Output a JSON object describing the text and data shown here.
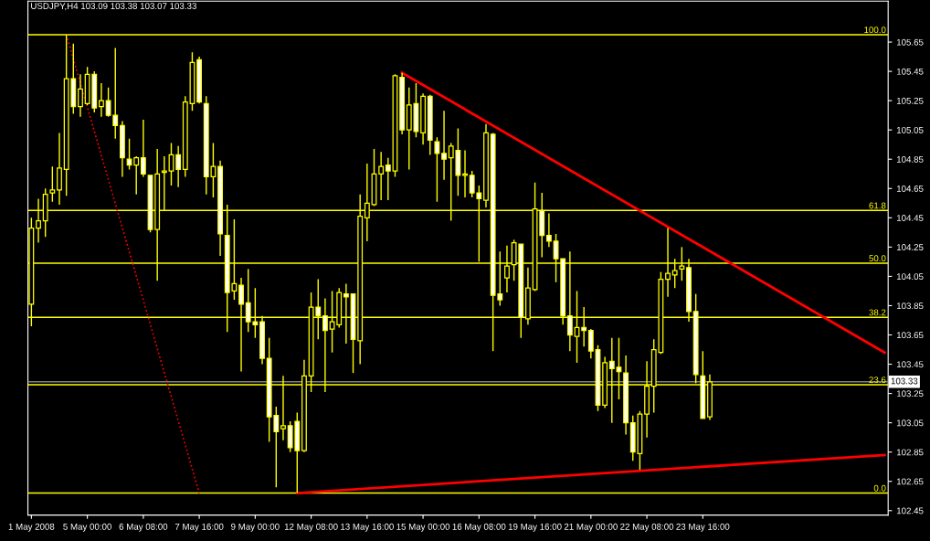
{
  "chart_data": {
    "type": "candlestick",
    "title": "USDJPY,H4 103.09 103.38 103.07 103.33",
    "categories": [
      "1 May 2008",
      null,
      null,
      null,
      null,
      null,
      null,
      null,
      "5 May 00:00",
      null,
      null,
      null,
      null,
      null,
      null,
      null,
      "6 May 08:00",
      null,
      null,
      null,
      null,
      null,
      null,
      null,
      "7 May 16:00",
      null,
      null,
      null,
      null,
      null,
      null,
      null,
      "9 May 00:00",
      null,
      null,
      null,
      null,
      null,
      null,
      null,
      "12 May 08:00",
      null,
      null,
      null,
      null,
      null,
      null,
      null,
      "13 May 16:00",
      null,
      null,
      null,
      null,
      null,
      null,
      null,
      "15 May 00:00",
      null,
      null,
      null,
      null,
      null,
      null,
      null,
      "16 May 08:00",
      null,
      null,
      null,
      null,
      null,
      null,
      null,
      "19 May 16:00",
      null,
      null,
      null,
      null,
      null,
      null,
      null,
      "21 May 00:00",
      null,
      null,
      null,
      null,
      null,
      null,
      null,
      "22 May 08:00",
      null,
      null,
      null,
      null,
      null,
      null,
      null,
      "23 May 16:00",
      null,
      null,
      null,
      null,
      null,
      null,
      null,
      null,
      null,
      null,
      null,
      null,
      null,
      null,
      null,
      null,
      null,
      null,
      null,
      null,
      null,
      null,
      null,
      null,
      null,
      null
    ],
    "ohlc": [
      [
        103.86,
        104.45,
        103.71,
        104.38
      ],
      [
        104.38,
        104.58,
        104.28,
        104.43
      ],
      [
        104.43,
        104.65,
        104.32,
        104.61
      ],
      [
        104.62,
        104.8,
        104.56,
        104.64
      ],
      [
        104.64,
        105.03,
        104.54,
        104.79
      ],
      [
        104.78,
        105.7,
        104.6,
        105.4
      ],
      [
        105.4,
        105.64,
        105.16,
        105.21
      ],
      [
        105.21,
        105.43,
        105.14,
        105.33
      ],
      [
        105.23,
        105.48,
        105.22,
        105.43
      ],
      [
        105.43,
        105.45,
        105.17,
        105.2
      ],
      [
        105.21,
        105.37,
        105.14,
        105.25
      ],
      [
        105.25,
        105.34,
        105.14,
        105.15
      ],
      [
        105.15,
        105.61,
        104.99,
        105.08
      ],
      [
        105.08,
        105.11,
        104.73,
        104.86
      ],
      [
        104.85,
        104.99,
        104.78,
        104.81
      ],
      [
        104.81,
        104.87,
        104.61,
        104.86
      ],
      [
        104.86,
        105.12,
        104.73,
        104.75
      ],
      [
        104.74,
        104.74,
        104.35,
        104.37
      ],
      [
        104.37,
        104.92,
        104.02,
        104.75
      ],
      [
        104.76,
        104.87,
        104.5,
        104.77
      ],
      [
        104.77,
        104.96,
        104.67,
        104.88
      ],
      [
        104.88,
        104.94,
        104.66,
        104.78
      ],
      [
        104.78,
        105.28,
        104.73,
        105.24
      ],
      [
        105.23,
        105.58,
        105.18,
        105.51
      ],
      [
        105.53,
        105.55,
        105.23,
        105.24
      ],
      [
        105.23,
        105.28,
        104.61,
        104.73
      ],
      [
        104.73,
        104.96,
        104.59,
        104.8
      ],
      [
        104.8,
        104.84,
        104.19,
        104.34
      ],
      [
        104.33,
        104.54,
        103.67,
        103.94
      ],
      [
        103.95,
        104.44,
        103.89,
        104.0
      ],
      [
        103.99,
        104.04,
        103.4,
        103.86
      ],
      [
        103.87,
        104.1,
        103.67,
        103.74
      ],
      [
        103.74,
        103.97,
        103.63,
        103.72
      ],
      [
        103.74,
        103.78,
        103.45,
        103.49
      ],
      [
        103.49,
        103.63,
        102.92,
        103.09
      ],
      [
        103.1,
        103.16,
        102.61,
        102.99
      ],
      [
        103.01,
        103.37,
        102.93,
        103.03
      ],
      [
        103.03,
        103.06,
        102.85,
        102.88
      ],
      [
        103.06,
        103.12,
        102.57,
        102.86
      ],
      [
        102.86,
        103.48,
        102.85,
        103.37
      ],
      [
        103.37,
        103.94,
        103.26,
        103.84
      ],
      [
        103.84,
        104.03,
        103.62,
        103.78
      ],
      [
        103.78,
        103.9,
        103.26,
        103.68
      ],
      [
        103.69,
        103.95,
        103.53,
        103.74
      ],
      [
        103.72,
        103.97,
        103.7,
        103.94
      ],
      [
        103.93,
        104.0,
        103.59,
        103.91
      ],
      [
        103.93,
        103.93,
        103.39,
        103.62
      ],
      [
        103.61,
        104.61,
        103.45,
        104.46
      ],
      [
        104.45,
        104.82,
        104.29,
        104.55
      ],
      [
        104.54,
        104.92,
        104.53,
        104.75
      ],
      [
        104.75,
        104.9,
        104.57,
        104.8
      ],
      [
        104.81,
        104.86,
        104.57,
        104.77
      ],
      [
        104.77,
        105.43,
        104.73,
        105.42
      ],
      [
        105.41,
        105.44,
        105.02,
        105.05
      ],
      [
        105.05,
        105.34,
        104.78,
        105.22
      ],
      [
        105.23,
        105.37,
        105.0,
        105.04
      ],
      [
        105.03,
        105.3,
        104.95,
        105.28
      ],
      [
        105.28,
        105.29,
        104.88,
        104.98
      ],
      [
        104.97,
        105.0,
        104.56,
        104.89
      ],
      [
        104.89,
        105.18,
        104.71,
        104.85
      ],
      [
        104.86,
        104.96,
        104.43,
        104.94
      ],
      [
        104.91,
        105.06,
        104.6,
        104.74
      ],
      [
        104.74,
        104.91,
        104.59,
        104.75
      ],
      [
        104.74,
        104.77,
        104.59,
        104.62
      ],
      [
        104.62,
        104.67,
        104.15,
        104.58
      ],
      [
        104.57,
        105.09,
        104.52,
        105.03
      ],
      [
        105.02,
        105.03,
        103.54,
        103.92
      ],
      [
        103.93,
        104.22,
        103.85,
        103.89
      ],
      [
        104.04,
        104.26,
        103.94,
        104.12
      ],
      [
        104.13,
        104.3,
        104.02,
        104.28
      ],
      [
        104.27,
        104.27,
        103.63,
        103.77
      ],
      [
        103.76,
        104.11,
        103.72,
        103.97
      ],
      [
        103.96,
        104.69,
        103.95,
        104.51
      ],
      [
        104.5,
        104.62,
        104.18,
        104.33
      ],
      [
        104.33,
        104.48,
        104.25,
        104.29
      ],
      [
        104.29,
        104.34,
        104.01,
        104.17
      ],
      [
        104.17,
        104.17,
        103.72,
        103.78
      ],
      [
        103.78,
        104.22,
        103.54,
        103.65
      ],
      [
        103.64,
        103.95,
        103.46,
        103.7
      ],
      [
        103.7,
        103.84,
        103.57,
        103.68
      ],
      [
        103.68,
        103.69,
        103.49,
        103.54
      ],
      [
        103.55,
        103.58,
        103.13,
        103.17
      ],
      [
        103.17,
        103.5,
        103.15,
        103.46
      ],
      [
        103.47,
        103.63,
        103.05,
        103.42
      ],
      [
        103.43,
        103.63,
        103.21,
        103.4
      ],
      [
        103.39,
        103.51,
        102.97,
        103.05
      ],
      [
        103.05,
        103.1,
        102.79,
        102.85
      ],
      [
        102.84,
        103.13,
        102.73,
        103.11
      ],
      [
        103.11,
        103.47,
        102.95,
        103.3
      ],
      [
        103.3,
        103.62,
        103.12,
        103.55
      ],
      [
        103.53,
        104.08,
        103.52,
        104.03
      ],
      [
        104.03,
        104.38,
        103.91,
        104.07
      ],
      [
        104.06,
        104.17,
        103.97,
        104.09
      ],
      [
        104.1,
        104.25,
        104.02,
        104.12
      ],
      [
        104.11,
        104.17,
        103.74,
        103.81
      ],
      [
        103.81,
        103.93,
        103.32,
        103.38
      ],
      [
        103.37,
        103.54,
        103.08,
        103.08
      ],
      [
        103.09,
        103.38,
        103.07,
        103.33
      ],
      null,
      null,
      null,
      null,
      null,
      null,
      null,
      null,
      null,
      null,
      null,
      null,
      null,
      null,
      null,
      null,
      null,
      null,
      null,
      null,
      null,
      null,
      null,
      null,
      null
    ],
    "series": [
      {
        "type": "line",
        "color": "#ff0000",
        "line_style": "solid",
        "values": [
          null,
          null,
          null,
          null,
          null,
          null,
          null,
          null,
          null,
          null,
          null,
          null,
          null,
          null,
          null,
          null,
          null,
          null,
          null,
          null,
          null,
          null,
          null,
          null,
          null,
          null,
          null,
          null,
          null,
          null,
          null,
          null,
          null,
          null,
          null,
          null,
          null,
          null,
          null,
          null,
          null,
          null,
          null,
          null,
          null,
          null,
          null,
          null,
          null,
          null,
          null,
          null,
          null,
          105.44,
          null,
          null,
          null,
          null,
          null,
          null,
          null,
          null,
          null,
          null,
          null,
          null,
          null,
          null,
          null,
          null,
          null,
          null,
          null,
          null,
          null,
          null,
          null,
          null,
          null,
          null,
          null,
          null,
          null,
          null,
          null,
          null,
          null,
          null,
          null,
          null,
          null,
          null,
          null,
          null,
          null,
          null,
          null,
          null,
          null,
          null,
          null,
          null,
          null,
          null,
          null,
          null,
          null,
          null,
          null,
          null,
          null,
          null,
          null,
          null,
          null,
          null,
          null,
          null,
          null,
          null,
          null,
          null,
          103.53
        ]
      },
      {
        "type": "line",
        "color": "#ff0000",
        "line_style": "solid",
        "values": [
          null,
          null,
          null,
          null,
          null,
          null,
          null,
          null,
          null,
          null,
          null,
          null,
          null,
          null,
          null,
          null,
          null,
          null,
          null,
          null,
          null,
          null,
          null,
          null,
          null,
          null,
          null,
          null,
          null,
          null,
          null,
          null,
          null,
          null,
          null,
          null,
          null,
          null,
          102.57,
          null,
          null,
          null,
          null,
          null,
          null,
          null,
          null,
          null,
          null,
          null,
          null,
          null,
          null,
          null,
          null,
          null,
          null,
          null,
          null,
          null,
          null,
          null,
          null,
          null,
          null,
          null,
          null,
          null,
          null,
          null,
          null,
          null,
          null,
          null,
          null,
          null,
          null,
          null,
          null,
          null,
          null,
          null,
          null,
          null,
          null,
          null,
          null,
          null,
          null,
          null,
          null,
          null,
          null,
          null,
          null,
          null,
          null,
          null,
          null,
          null,
          null,
          null,
          null,
          null,
          null,
          null,
          null,
          null,
          null,
          null,
          null,
          null,
          null,
          null,
          null,
          null,
          null,
          null,
          null,
          null,
          null,
          null,
          102.83
        ]
      },
      {
        "type": "line",
        "color": "#ff0000",
        "line_style": "dotted",
        "values": [
          null,
          null,
          null,
          null,
          null,
          105.7,
          null,
          null,
          null,
          null,
          null,
          null,
          null,
          null,
          null,
          null,
          null,
          null,
          null,
          null,
          null,
          null,
          null,
          null,
          102.57,
          null,
          null,
          null,
          null,
          null,
          null,
          null,
          null,
          null,
          null,
          null,
          null,
          null,
          null,
          null,
          null,
          null,
          null,
          null,
          null,
          null,
          null,
          null,
          null,
          null,
          null,
          null,
          null,
          null,
          null,
          null,
          null,
          null,
          null,
          null,
          null,
          null,
          null,
          null,
          null,
          null,
          null,
          null,
          null,
          null,
          null,
          null,
          null,
          null,
          null,
          null,
          null,
          null,
          null,
          null,
          null,
          null,
          null,
          null,
          null,
          null,
          null,
          null,
          null,
          null,
          null,
          null,
          null,
          null,
          null,
          null,
          null,
          null,
          null,
          null,
          null,
          null,
          null,
          null,
          null,
          null,
          null,
          null,
          null,
          null,
          null,
          null,
          null,
          null,
          null,
          null,
          null,
          null,
          null,
          null,
          null,
          null,
          null
        ]
      }
    ],
    "ylim": [
      102.42,
      105.93
    ],
    "yticks": [
      102.45,
      102.65,
      102.85,
      103.05,
      103.25,
      103.45,
      103.65,
      103.85,
      104.05,
      104.25,
      104.45,
      104.65,
      104.85,
      105.05,
      105.25,
      105.45,
      105.65
    ],
    "ref_lines": [
      {
        "axis": "y",
        "value": 105.7,
        "color": "#ffff00"
      },
      {
        "axis": "y",
        "value": 104.5,
        "color": "#ffff00"
      },
      {
        "axis": "y",
        "value": 104.14,
        "color": "#ffff00"
      },
      {
        "axis": "y",
        "value": 103.77,
        "color": "#ffff00"
      },
      {
        "axis": "y",
        "value": 103.31,
        "color": "#ffff00"
      },
      {
        "axis": "y",
        "value": 102.57,
        "color": "#ffff00"
      },
      {
        "axis": "y",
        "value": 103.33,
        "label": "103.33",
        "color": "#808080"
      }
    ],
    "annotations": [
      {
        "text": "100.0",
        "y": 105.7
      },
      {
        "text": "61.8",
        "y": 104.5
      },
      {
        "text": "50.0",
        "y": 104.14
      },
      {
        "text": "38.2",
        "y": 103.77
      },
      {
        "text": "23.6",
        "y": 103.31
      },
      {
        "text": "0.0",
        "y": 102.57
      }
    ],
    "grid": false,
    "legend": false
  }
}
